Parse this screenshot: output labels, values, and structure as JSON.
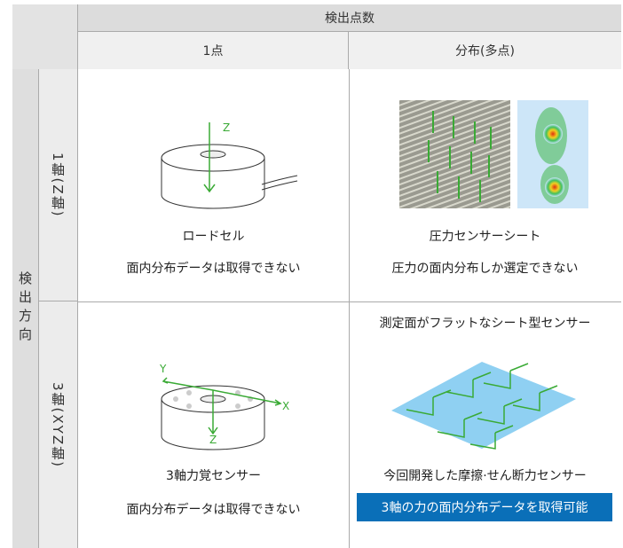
{
  "header": {
    "title": "検出点数",
    "columns": [
      "1点",
      "分布(多点)"
    ]
  },
  "side": {
    "title": "検出方向"
  },
  "rows": [
    {
      "label": "1軸(Z軸)",
      "cells": [
        {
          "name": "ロードセル",
          "note": "面内分布データは取得できない",
          "axes": [
            "Z"
          ]
        },
        {
          "name": "圧力センサーシート",
          "note": "圧力の面内分布しか選定できない"
        }
      ]
    },
    {
      "label": "3軸(XYZ軸)",
      "cells": [
        {
          "name": "3軸力覚センサー",
          "note": "面内分布データは取得できない",
          "axes": [
            "Y",
            "X",
            "Z"
          ]
        },
        {
          "caption": "測定面がフラットなシート型センサー",
          "name": "今回開発した摩擦·せん断力センサー",
          "note": "3軸の力の面内分布データを取得可能"
        }
      ]
    }
  ]
}
